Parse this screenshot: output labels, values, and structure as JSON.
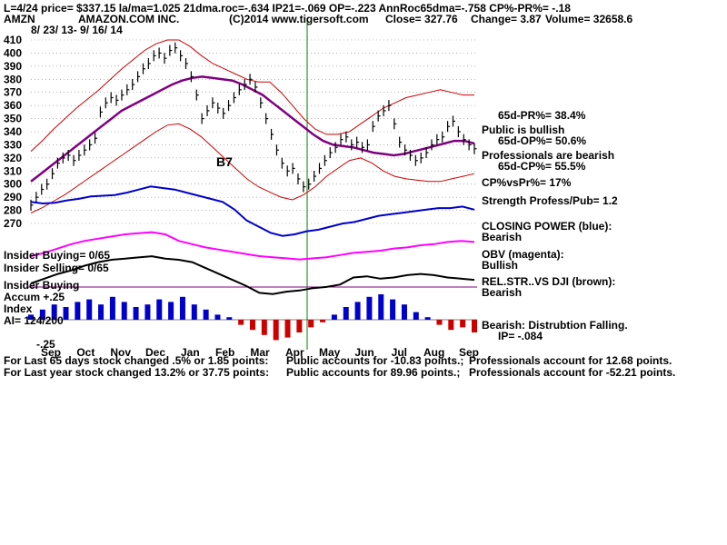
{
  "header": {
    "line1": "L=4/24  price= $337.15  la/ma=1.025 21dma.roc=-.634 IP21=-.069 OP=-.223 AnnRoc65dma=-.758 CP%-PR%= -.18",
    "ticker": "AMZN",
    "company": "AMAZON.COM INC.",
    "copyright": "(C)2014 www.tigersoft.com",
    "close": "Close=  327.76",
    "change": "Change= 3.87",
    "volume": "Volume= 32658.6",
    "date_range": "8/ 23/ 13-  9/ 16/ 14"
  },
  "annotations": {
    "b7": "B7",
    "pr65": "65d-PR%= 38.4%",
    "public": "Public is bullish",
    "op65": "65d-OP%= 50.6%",
    "pros": "Professionals are bearish",
    "cp65": "65d-CP%= 55.5%",
    "cpvspr": "CP%vsPr%=  17%",
    "strength": "Strength Profess/Pub= 1.2",
    "closing_power": "CLOSING POWER (blue):",
    "closing_power_state": "Bearish",
    "obv": "OBV (magenta):",
    "obv_state": "Bullish",
    "relstr": "REL.STR..VS DJI (brown):",
    "relstr_state": "Bearish",
    "insider_buying": "Insider Buying= 0/65",
    "insider_selling": "Insider Selling= 0/65",
    "insider_buying2": "Insider Buying",
    "accum": "Accum  +.25",
    "index": "Index",
    "ai": "AI= 124/200",
    "minus25": "-.25",
    "bearish_dist": "Bearish: Distrubtion Falling.",
    "ip": "IP= -.084"
  },
  "footer": {
    "line1a": "For Last 65 days stock changed  .5% or  1.85 points:",
    "line1b": "Public accounts for -10.83 points.;",
    "line1c": "Professionals account for  12.68 points.",
    "line2a": "For Last year stock changed  13.2% or  37.75 points:",
    "line2b": "Public accounts for  89.96 points.;",
    "line2c": "Professionals account for -52.21 points."
  },
  "colors": {
    "price": "#000000",
    "bands": "#cc0000",
    "ma": "#800080",
    "closing_power": "#0000cc",
    "obv": "#ff00ff",
    "relstr": "#000000",
    "accum_pos": "#0000cc",
    "accum_neg": "#cc0000",
    "grid": "#888888",
    "vline": "#008000"
  },
  "chart_data": {
    "type": "line",
    "yticks": [
      410,
      400,
      390,
      380,
      370,
      360,
      350,
      340,
      330,
      320,
      310,
      300,
      290,
      280,
      270
    ],
    "ylim": [
      265,
      412
    ],
    "months": [
      "Sep",
      "Oct",
      "Nov",
      "Dec",
      "Jan",
      "Feb",
      "Mar",
      "Apr",
      "May",
      "Jun",
      "Jul",
      "Aug",
      "Sep"
    ],
    "price": [
      284,
      290,
      296,
      300,
      308,
      316,
      320,
      322,
      318,
      322,
      326,
      330,
      335,
      355,
      362,
      366,
      364,
      368,
      372,
      376,
      382,
      388,
      392,
      398,
      400,
      396,
      402,
      404,
      398,
      392,
      382,
      368,
      350,
      356,
      362,
      358,
      354,
      360,
      366,
      372,
      376,
      380,
      374,
      362,
      350,
      338,
      326,
      316,
      310,
      312,
      304,
      298,
      300,
      306,
      312,
      318,
      324,
      328,
      334,
      336,
      330,
      332,
      328,
      330,
      344,
      352,
      356,
      360,
      346,
      332,
      326,
      322,
      318,
      320,
      324,
      330,
      334,
      336,
      344,
      348,
      340,
      334,
      330,
      327
    ],
    "ma": [
      302,
      308,
      314,
      320,
      326,
      332,
      338,
      344,
      350,
      356,
      360,
      364,
      368,
      372,
      376,
      379,
      381,
      382,
      381,
      380,
      379,
      376,
      372,
      368,
      362,
      356,
      350,
      344,
      338,
      333,
      330,
      329,
      328,
      326,
      324,
      323,
      322,
      323,
      325,
      327,
      329,
      331,
      333,
      333,
      331
    ],
    "upper_band": [
      325,
      333,
      342,
      350,
      358,
      365,
      372,
      380,
      388,
      395,
      402,
      407,
      410,
      410,
      405,
      398,
      392,
      388,
      384,
      380,
      378,
      378,
      370,
      360,
      350,
      342,
      338,
      338,
      340,
      346,
      352,
      358,
      362,
      366,
      368,
      370,
      372,
      370,
      368,
      368
    ],
    "lower_band": [
      278,
      282,
      287,
      292,
      298,
      304,
      310,
      316,
      322,
      328,
      334,
      340,
      345,
      346,
      342,
      336,
      328,
      320,
      312,
      304,
      298,
      294,
      290,
      288,
      292,
      298,
      306,
      312,
      318,
      320,
      316,
      310,
      306,
      304,
      303,
      302,
      302,
      304,
      306,
      308
    ],
    "closing_power": [
      0.62,
      0.6,
      0.61,
      0.64,
      0.66,
      0.69,
      0.7,
      0.71,
      0.74,
      0.78,
      0.82,
      0.8,
      0.78,
      0.74,
      0.7,
      0.66,
      0.62,
      0.52,
      0.38,
      0.3,
      0.22,
      0.18,
      0.2,
      0.24,
      0.26,
      0.3,
      0.34,
      0.36,
      0.4,
      0.44,
      0.46,
      0.48,
      0.5,
      0.52,
      0.54,
      0.54,
      0.56,
      0.52
    ],
    "obv": [
      0.3,
      0.36,
      0.44,
      0.52,
      0.58,
      0.62,
      0.66,
      0.7,
      0.72,
      0.74,
      0.7,
      0.58,
      0.52,
      0.46,
      0.42,
      0.38,
      0.34,
      0.3,
      0.28,
      0.26,
      0.24,
      0.26,
      0.28,
      0.32,
      0.36,
      0.38,
      0.4,
      0.44,
      0.46,
      0.5,
      0.52,
      0.56,
      0.58,
      0.56
    ],
    "relstr": [
      0.2,
      0.28,
      0.36,
      0.42,
      0.5,
      0.56,
      0.6,
      0.62,
      0.64,
      0.66,
      0.62,
      0.6,
      0.56,
      0.46,
      0.36,
      0.26,
      0.16,
      0.04,
      0.02,
      0.06,
      0.08,
      0.12,
      0.14,
      0.18,
      0.3,
      0.32,
      0.28,
      0.3,
      0.34,
      0.36,
      0.34,
      0.3,
      0.28,
      0.26
    ],
    "accum": [
      0.2,
      0.4,
      0.6,
      0.5,
      0.7,
      0.8,
      0.6,
      0.9,
      0.7,
      0.5,
      0.6,
      0.8,
      0.7,
      0.9,
      0.6,
      0.4,
      0.2,
      0.1,
      -0.2,
      -0.4,
      -0.6,
      -0.8,
      -0.7,
      -0.5,
      -0.3,
      -0.1,
      0.2,
      0.5,
      0.7,
      0.9,
      1.0,
      0.8,
      0.6,
      0.3,
      0.1,
      -0.2,
      -0.4,
      -0.3,
      -0.5
    ]
  }
}
